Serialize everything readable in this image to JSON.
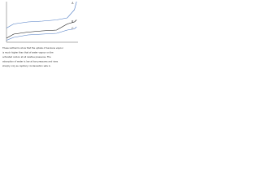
{
  "chart_data": {
    "type": "line",
    "x": [
      0,
      0.1,
      0.3,
      0.5,
      0.7,
      0.85,
      0.95,
      0.98
    ],
    "xlim": [
      0,
      1
    ],
    "ylim": [
      0,
      1
    ],
    "series": [
      {
        "name": "A",
        "color": "#4a78c2",
        "values": [
          0.35,
          0.45,
          0.5,
          0.52,
          0.55,
          0.6,
          0.8,
          1.0
        ]
      },
      {
        "name": "B",
        "color": "#111111",
        "values": [
          0.1,
          0.2,
          0.25,
          0.28,
          0.3,
          0.45,
          0.5,
          0.55
        ]
      },
      {
        "name": "C",
        "color": "#4a78c2",
        "values": [
          0.05,
          0.12,
          0.18,
          0.2,
          0.22,
          0.3,
          0.33,
          0.38
        ]
      }
    ],
    "caption": [
      "These isotherms show that the uptake of benzene vapour",
      "is much higher than that of water vapour on the",
      "activated carbon at all relative pressures. The",
      "adsorption of water is low at low pressures and rises",
      "sharply only as capillary condensation sets in."
    ]
  }
}
